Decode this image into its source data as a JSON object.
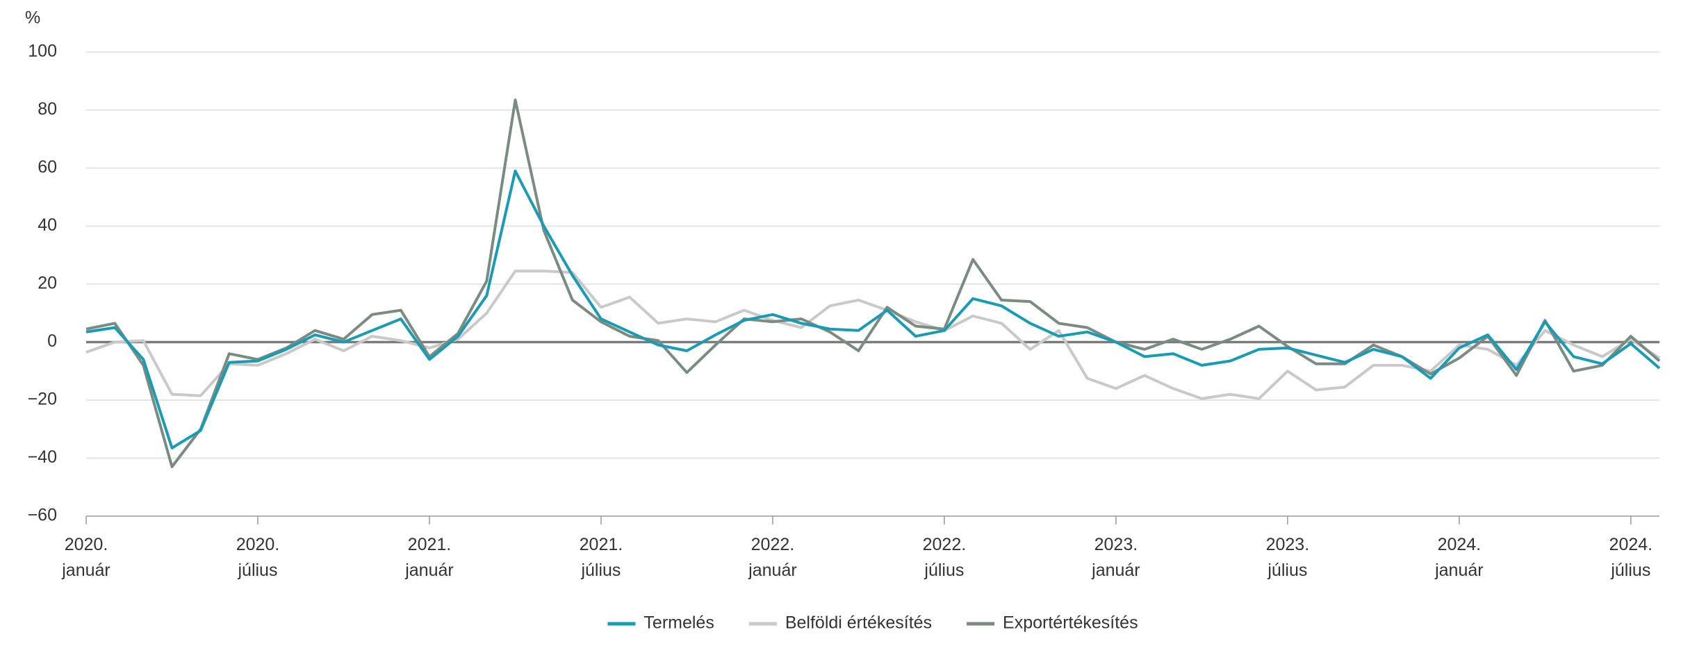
{
  "chart_data": {
    "type": "line",
    "y_unit": "%",
    "categories": [
      [
        "2020.",
        "január"
      ],
      null,
      null,
      null,
      null,
      null,
      [
        "2020.",
        "július"
      ],
      null,
      null,
      null,
      null,
      null,
      [
        "2021.",
        "január"
      ],
      null,
      null,
      null,
      null,
      null,
      [
        "2021.",
        "július"
      ],
      null,
      null,
      null,
      null,
      null,
      [
        "2022.",
        "január"
      ],
      null,
      null,
      null,
      null,
      null,
      [
        "2022.",
        "július"
      ],
      null,
      null,
      null,
      null,
      null,
      [
        "2023.",
        "január"
      ],
      null,
      null,
      null,
      null,
      null,
      [
        "2023.",
        "július"
      ],
      null,
      null,
      null,
      null,
      null,
      [
        "2024.",
        "január"
      ],
      null,
      null,
      null,
      null,
      null,
      [
        "2024.",
        "július"
      ],
      null
    ],
    "series": [
      {
        "name": "Termelés",
        "color": "#1a9bb5",
        "values": [
          3.5,
          5,
          -6,
          -36.5,
          -30.5,
          -7,
          -6.5,
          -2.5,
          2.5,
          0,
          4,
          8,
          -6,
          2,
          16,
          59,
          40,
          23,
          8,
          3.5,
          -1,
          -3,
          2.5,
          7.5,
          9.5,
          6.5,
          4.5,
          4,
          11,
          2,
          4,
          15,
          12.5,
          6.5,
          2,
          3.5,
          0,
          -5,
          -4,
          -8,
          -6.5,
          -2.5,
          -2,
          -4.5,
          -7,
          -2.5,
          -5,
          -12.5,
          -2,
          2.5,
          -9.5,
          7,
          -5,
          -7.5,
          -0.5,
          -9
        ]
      },
      {
        "name": "Belföldi értékesítés",
        "color": "#c9c9c9",
        "values": [
          -3.5,
          0,
          0.5,
          -18,
          -18.5,
          -7.5,
          -8,
          -4,
          1,
          -3,
          2,
          0.5,
          -2,
          1,
          10,
          24.5,
          24.5,
          24,
          12,
          15.5,
          6.5,
          8,
          7,
          11,
          7.5,
          5,
          12.5,
          14.5,
          11,
          7,
          4,
          9,
          6.5,
          -2.5,
          4,
          -12.5,
          -16,
          -11.5,
          -16,
          -19.5,
          -18,
          -19.5,
          -10,
          -16.5,
          -15.5,
          -8,
          -8,
          -10,
          -1,
          -2.5,
          -8,
          4,
          -1,
          -5,
          1,
          -5.5
        ]
      },
      {
        "name": "Exportértékesítés",
        "color": "#7a8c80",
        "values": [
          4.5,
          6.5,
          -8,
          -43,
          -30,
          -4,
          -6,
          -2,
          4,
          1,
          9.5,
          11,
          -5,
          3,
          21,
          83.5,
          38.5,
          14.5,
          7,
          2,
          0.5,
          -10.5,
          -1,
          8,
          7,
          8,
          3.5,
          -3,
          12,
          5.5,
          4.5,
          28.5,
          14.5,
          14,
          6.5,
          5,
          0,
          -2.5,
          1,
          -2.5,
          1,
          5.5,
          -1.5,
          -7.5,
          -7.5,
          -1,
          -5,
          -11,
          -5.5,
          2,
          -11.5,
          7.5,
          -10,
          -8,
          2,
          -6.5
        ]
      }
    ],
    "ylim": [
      -60,
      100
    ],
    "yticks": [
      {
        "value": -60,
        "label": "−60"
      },
      {
        "value": -40,
        "label": "−40"
      },
      {
        "value": -20,
        "label": "−20"
      },
      0,
      20,
      40,
      60,
      80,
      100
    ],
    "grid": true,
    "legend": "bottom"
  }
}
